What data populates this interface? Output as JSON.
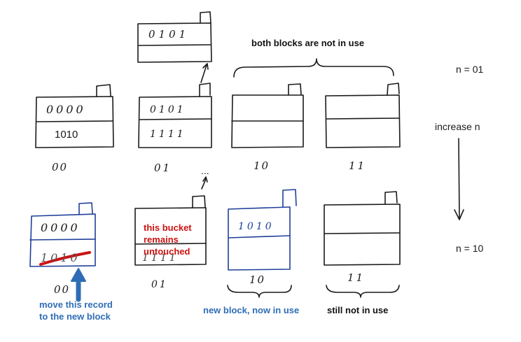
{
  "top_row": {
    "blocks": [
      {
        "records": [
          "0000",
          "1010"
        ],
        "label": "00"
      },
      {
        "records": [
          "0101",
          "1111"
        ],
        "label": "01"
      },
      {
        "records": [
          "",
          ""
        ],
        "label": "10"
      },
      {
        "records": [
          "",
          ""
        ],
        "label": "11"
      }
    ],
    "overflow_block": {
      "records": [
        "0101",
        ""
      ]
    },
    "ellipsis": "...",
    "note_both_blocks": "both blocks are not in use",
    "n_label": "n = 01"
  },
  "middle": {
    "increase_label": "increase n"
  },
  "bottom_row": {
    "blocks": [
      {
        "records": [
          "0000",
          "1010"
        ],
        "label": "00"
      },
      {
        "records": [
          "",
          "1111"
        ],
        "label": "01"
      },
      {
        "records": [
          "1010",
          ""
        ],
        "label": "10"
      },
      {
        "records": [
          "",
          ""
        ],
        "label": "11"
      }
    ],
    "note_untouched": [
      "this bucket",
      "remains",
      "untouched"
    ],
    "note_move": [
      "move this record",
      "to the new block"
    ],
    "note_new_block": "new block, now in use",
    "note_still_not": "still not in use",
    "n_label": "n = 10"
  },
  "colors": {
    "ink": "#1a1a1a",
    "blue": "#1f3f99",
    "annotation_blue": "#2e6db5",
    "red": "#cc1111",
    "dark_blue_text": "#1f4e8c"
  }
}
